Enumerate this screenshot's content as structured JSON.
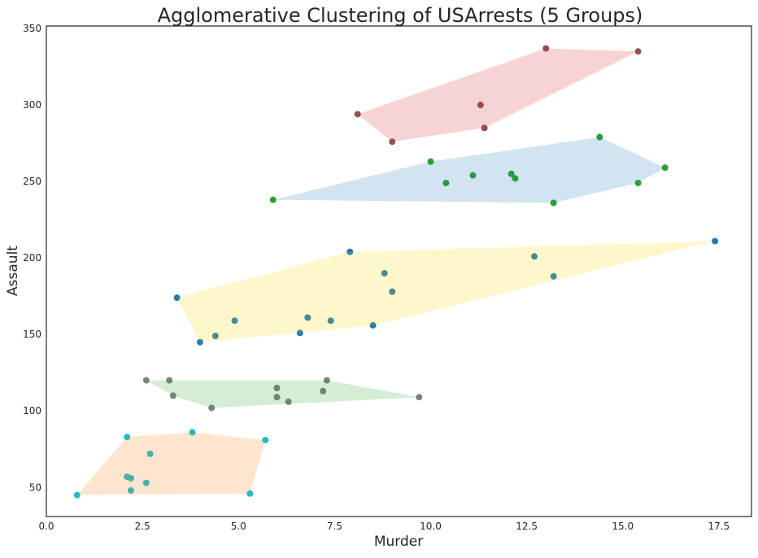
{
  "chart_data": {
    "type": "scatter",
    "title": "Agglomerative Clustering of USArrests (5 Groups)",
    "xlabel": "Murder",
    "ylabel": "Assault",
    "xlim": [
      0,
      18.35
    ],
    "ylim": [
      31,
      351.6
    ],
    "xticks": [
      "0.0",
      "2.5",
      "5.0",
      "7.5",
      "10.0",
      "12.5",
      "15.0",
      "17.5"
    ],
    "yticks": [
      "50",
      "100",
      "150",
      "200",
      "250",
      "300",
      "350"
    ],
    "grid": false,
    "legend": "none",
    "hull_fill_opacity": 0.2,
    "series": [
      {
        "point_color": "#8c564b",
        "hull_color": "#d62728",
        "points": [
          [
            13.0,
            337
          ],
          [
            15.4,
            335
          ],
          [
            11.3,
            300
          ],
          [
            8.1,
            294
          ],
          [
            11.4,
            285
          ],
          [
            9.0,
            276
          ]
        ]
      },
      {
        "point_color": "#2ca02c",
        "hull_color": "#1f77b4",
        "points": [
          [
            14.4,
            279
          ],
          [
            16.1,
            259
          ],
          [
            12.1,
            255
          ],
          [
            10.0,
            263
          ],
          [
            10.4,
            249
          ],
          [
            12.2,
            252
          ],
          [
            15.4,
            249
          ],
          [
            13.2,
            236
          ],
          [
            5.9,
            238
          ],
          [
            11.1,
            254
          ]
        ]
      },
      {
        "point_color": "#1f77b4",
        "hull_color": "#ffd700",
        "points": [
          [
            17.4,
            211
          ],
          [
            7.9,
            204
          ],
          [
            12.7,
            201
          ],
          [
            13.2,
            188
          ],
          [
            9.0,
            178
          ],
          [
            6.8,
            161
          ],
          [
            8.8,
            190
          ],
          [
            4.9,
            159
          ],
          [
            3.4,
            174
          ],
          [
            8.5,
            156
          ],
          [
            4.4,
            149
          ],
          [
            7.4,
            159
          ],
          [
            6.6,
            151
          ],
          [
            4.0,
            145
          ]
        ]
      },
      {
        "point_color": "#7f7f7f",
        "hull_color": "#2ca02c",
        "points": [
          [
            2.6,
            120
          ],
          [
            7.2,
            113
          ],
          [
            6.0,
            115
          ],
          [
            9.7,
            109
          ],
          [
            6.0,
            109
          ],
          [
            4.3,
            102
          ],
          [
            7.3,
            120
          ],
          [
            6.3,
            106
          ],
          [
            3.2,
            120
          ],
          [
            3.3,
            110
          ]
        ]
      },
      {
        "point_color": "#17becf",
        "hull_color": "#ff7f0e",
        "points": [
          [
            5.3,
            46
          ],
          [
            2.2,
            56
          ],
          [
            2.1,
            83
          ],
          [
            2.7,
            72
          ],
          [
            2.1,
            57
          ],
          [
            0.8,
            45
          ],
          [
            3.8,
            86
          ],
          [
            2.2,
            48
          ],
          [
            5.7,
            81
          ],
          [
            2.6,
            53
          ]
        ]
      }
    ]
  }
}
